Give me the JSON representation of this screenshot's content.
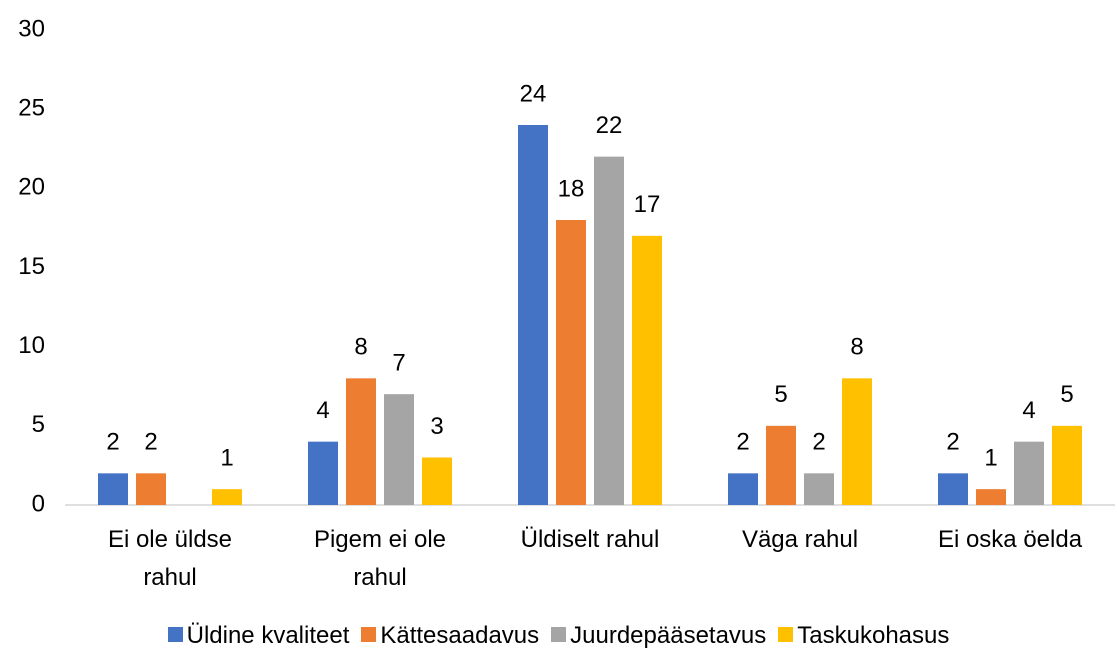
{
  "chart_data": {
    "type": "bar",
    "categories": [
      "Ei ole üldse rahul",
      "Pigem ei ole rahul",
      "Üldiselt rahul",
      "Väga rahul",
      "Ei oska öelda"
    ],
    "series": [
      {
        "name": "Üldine kvaliteet",
        "color": "#4472c4",
        "values": [
          2,
          4,
          24,
          2,
          2
        ]
      },
      {
        "name": "Kättesaadavus",
        "color": "#ed7d31",
        "values": [
          2,
          8,
          18,
          5,
          1
        ]
      },
      {
        "name": "Juurdepääsetavus",
        "color": "#a5a5a5",
        "values": [
          null,
          7,
          22,
          2,
          4
        ]
      },
      {
        "name": "Taskukohasus",
        "color": "#ffc000",
        "values": [
          1,
          3,
          17,
          8,
          5
        ]
      }
    ],
    "ylim": [
      0,
      30
    ],
    "yticks": [
      0,
      5,
      10,
      15,
      20,
      25,
      30
    ],
    "grid": false,
    "legend": "bottom"
  }
}
